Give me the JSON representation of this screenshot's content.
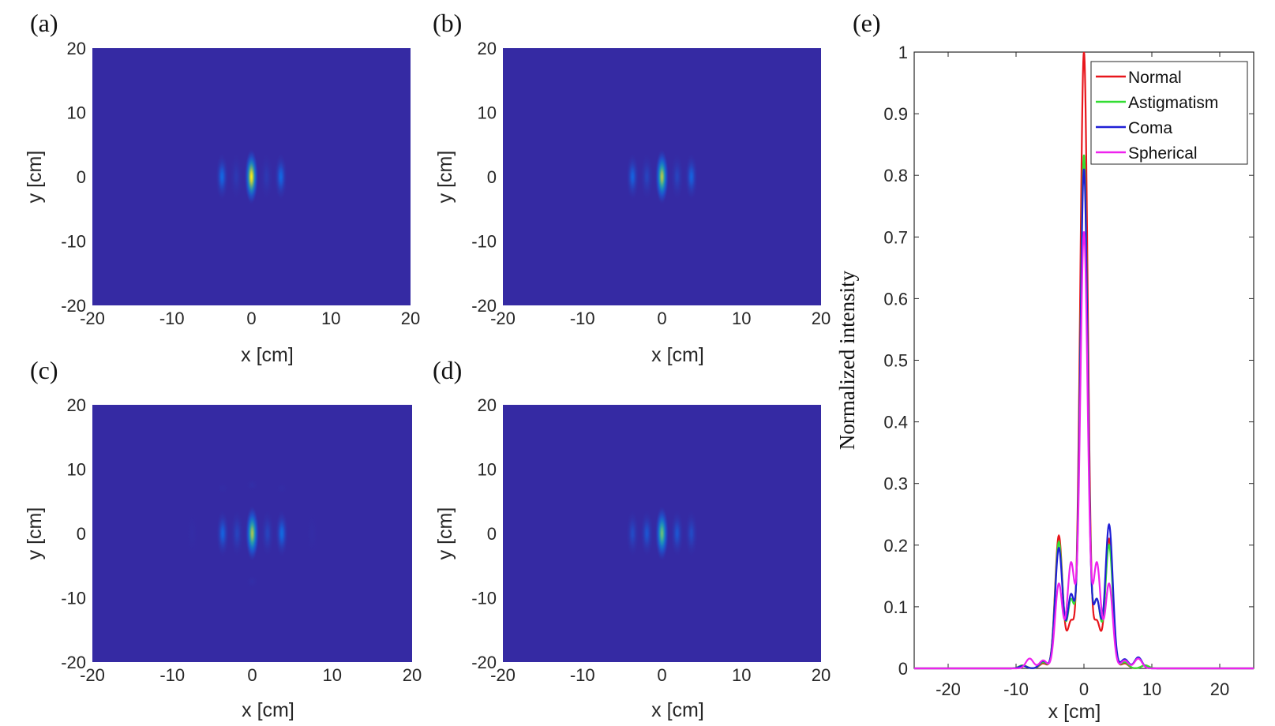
{
  "chart_data": [
    {
      "type": "heatmap",
      "panel_label": "(a)",
      "xlabel": "x  [cm]",
      "ylabel": "y  [cm]",
      "xlim": [
        -20,
        20
      ],
      "ylim": [
        -20,
        20
      ],
      "xticks": [
        "-20",
        "-10",
        "0",
        "10",
        "20"
      ],
      "yticks": [
        "20",
        "10",
        "0",
        "-10",
        "-20"
      ],
      "spots": [
        {
          "x": -3.7,
          "y": 0,
          "intensity": 0.22
        },
        {
          "x": -1.9,
          "y": 0,
          "intensity": 0.08
        },
        {
          "x": 0,
          "y": 0,
          "intensity": 1.0
        },
        {
          "x": 1.9,
          "y": 0,
          "intensity": 0.08
        },
        {
          "x": 3.7,
          "y": 0,
          "intensity": 0.22
        }
      ]
    },
    {
      "type": "heatmap",
      "panel_label": "(b)",
      "xlabel": "x  [cm]",
      "ylabel": "y  [cm]",
      "xlim": [
        -20,
        20
      ],
      "ylim": [
        -20,
        20
      ],
      "xticks": [
        "-20",
        "-10",
        "0",
        "10",
        "20"
      ],
      "yticks": [
        "20",
        "10",
        "0",
        "-10",
        "-20"
      ],
      "spots": [
        {
          "x": -3.7,
          "y": 0,
          "intensity": 0.2
        },
        {
          "x": -1.9,
          "y": 0,
          "intensity": 0.12
        },
        {
          "x": 0,
          "y": 0,
          "intensity": 0.83
        },
        {
          "x": 1.9,
          "y": 0,
          "intensity": 0.12
        },
        {
          "x": 3.7,
          "y": 0,
          "intensity": 0.2
        }
      ]
    },
    {
      "type": "heatmap",
      "panel_label": "(c)",
      "xlabel": "x  [cm]",
      "ylabel": "y  [cm]",
      "xlim": [
        -20,
        20
      ],
      "ylim": [
        -20,
        20
      ],
      "xticks": [
        "-20",
        "-10",
        "0",
        "10",
        "20"
      ],
      "yticks": [
        "20",
        "10",
        "0",
        "-10",
        "-20"
      ],
      "spots": [
        {
          "x": -7.5,
          "y": 0,
          "intensity": 0.02
        },
        {
          "x": -3.7,
          "y": 0,
          "intensity": 0.2
        },
        {
          "x": -1.9,
          "y": 0,
          "intensity": 0.12
        },
        {
          "x": 0,
          "y": 0,
          "intensity": 0.81
        },
        {
          "x": 1.9,
          "y": 0,
          "intensity": 0.12
        },
        {
          "x": 3.7,
          "y": 0,
          "intensity": 0.23
        },
        {
          "x": 7.5,
          "y": 0,
          "intensity": 0.02
        },
        {
          "x": -3.7,
          "y": 7,
          "intensity": 0.02
        },
        {
          "x": 3.7,
          "y": 7,
          "intensity": 0.02
        },
        {
          "x": 0,
          "y": 7.5,
          "intensity": 0.03
        },
        {
          "x": 0,
          "y": -7.5,
          "intensity": 0.03
        }
      ]
    },
    {
      "type": "heatmap",
      "panel_label": "(d)",
      "xlabel": "x  [cm]",
      "ylabel": "y  [cm]",
      "xlim": [
        -20,
        20
      ],
      "ylim": [
        -20,
        20
      ],
      "xticks": [
        "-20",
        "-10",
        "0",
        "10",
        "20"
      ],
      "yticks": [
        "20",
        "10",
        "0",
        "-10",
        "-20"
      ],
      "spots": [
        {
          "x": -3.7,
          "y": 0,
          "intensity": 0.14
        },
        {
          "x": -1.9,
          "y": 0,
          "intensity": 0.17
        },
        {
          "x": 0,
          "y": 0,
          "intensity": 0.71
        },
        {
          "x": 1.9,
          "y": 0,
          "intensity": 0.17
        },
        {
          "x": 3.7,
          "y": 0,
          "intensity": 0.14
        }
      ]
    },
    {
      "type": "line",
      "panel_label": "(e)",
      "xlabel": "x  [cm]",
      "ylabel": "Normalized intensity",
      "xlim": [
        -25,
        25
      ],
      "ylim": [
        0,
        1
      ],
      "xticks": [
        "-20",
        "-10",
        "0",
        "10",
        "20"
      ],
      "yticks": [
        "0",
        "0.1",
        "0.2",
        "0.3",
        "0.4",
        "0.5",
        "0.6",
        "0.7",
        "0.8",
        "0.9",
        "1"
      ],
      "legend_position": "top-right",
      "series": [
        {
          "name": "Normal",
          "color": "#e8161c",
          "peaks": [
            [
              -9,
              0.005
            ],
            [
              -6,
              0.008
            ],
            [
              -3.7,
              0.215
            ],
            [
              -1.9,
              0.075
            ],
            [
              0,
              1.0
            ],
            [
              1.9,
              0.075
            ],
            [
              3.7,
              0.21
            ],
            [
              6,
              0.008
            ],
            [
              9,
              0.005
            ]
          ]
        },
        {
          "name": "Astigmatism",
          "color": "#33dd33",
          "peaks": [
            [
              -9,
              0.005
            ],
            [
              -6,
              0.01
            ],
            [
              -3.7,
              0.205
            ],
            [
              -1.9,
              0.11
            ],
            [
              0,
              0.833
            ],
            [
              1.9,
              0.11
            ],
            [
              3.7,
              0.2
            ],
            [
              6,
              0.01
            ],
            [
              9,
              0.005
            ]
          ]
        },
        {
          "name": "Coma",
          "color": "#1f1fd6",
          "peaks": [
            [
              -9,
              0.004
            ],
            [
              -6,
              0.012
            ],
            [
              -3.7,
              0.195
            ],
            [
              -1.9,
              0.118
            ],
            [
              0,
              0.81
            ],
            [
              1.9,
              0.11
            ],
            [
              3.7,
              0.233
            ],
            [
              6,
              0.015
            ],
            [
              8,
              0.018
            ]
          ]
        },
        {
          "name": "Spherical",
          "color": "#ee22ee",
          "peaks": [
            [
              -8,
              0.016
            ],
            [
              -6,
              0.013
            ],
            [
              -3.7,
              0.137
            ],
            [
              -1.9,
              0.17
            ],
            [
              0,
              0.708
            ],
            [
              1.9,
              0.17
            ],
            [
              3.7,
              0.137
            ],
            [
              6,
              0.013
            ],
            [
              8,
              0.016
            ]
          ]
        }
      ]
    }
  ]
}
